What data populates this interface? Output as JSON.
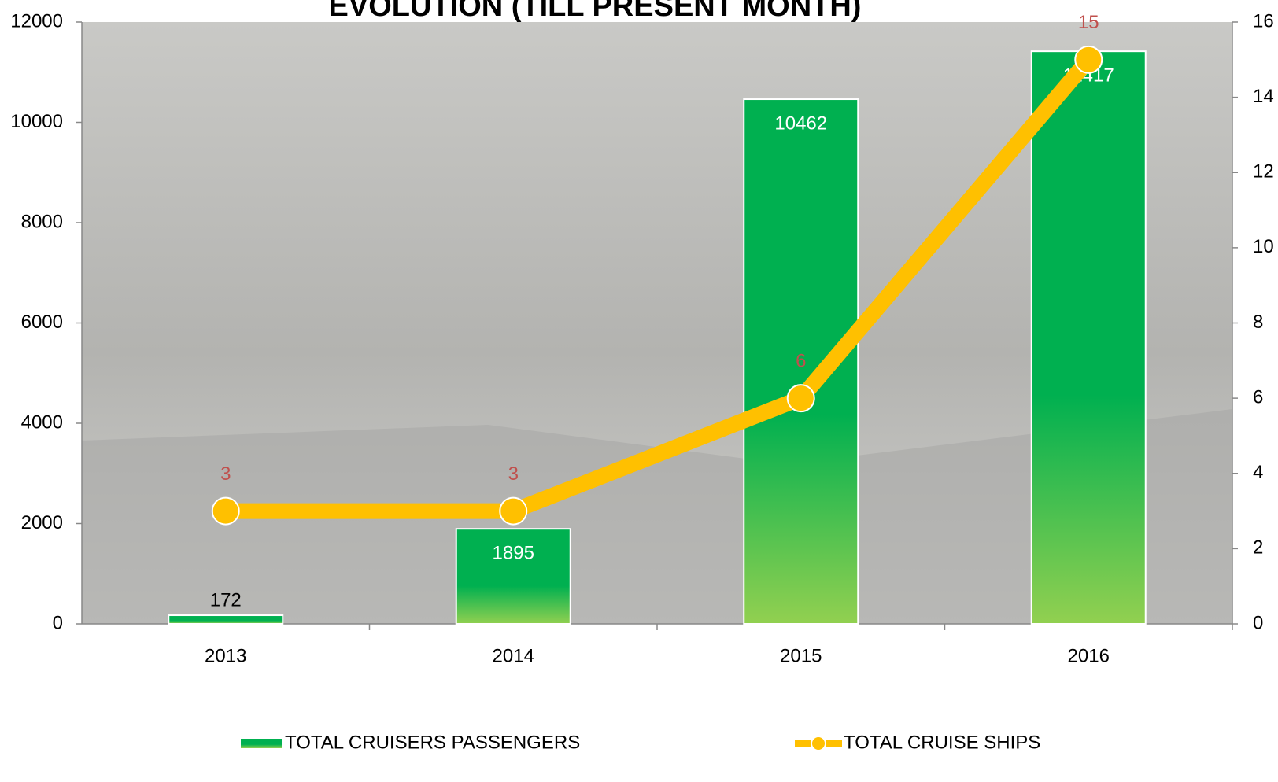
{
  "chart_data": {
    "type": "combo",
    "title": "EVOLUTION (TILL PRESENT MONTH)",
    "categories": [
      "2013",
      "2014",
      "2015",
      "2016"
    ],
    "series": [
      {
        "name": "TOTAL CRUISERS PASSENGERS",
        "type": "bar",
        "axis": "y",
        "color": "#00b050",
        "color2": "#92d050",
        "values": [
          172,
          1895,
          10462,
          11417
        ]
      },
      {
        "name": "TOTAL CRUISE SHIPS",
        "type": "line",
        "axis": "y2",
        "color": "#ffc000",
        "label_color": "#c0504d",
        "values": [
          3,
          3,
          6,
          15
        ]
      }
    ],
    "ylim": [
      0,
      12000
    ],
    "yticks": [
      0,
      2000,
      4000,
      6000,
      8000,
      10000,
      12000
    ],
    "y2lim": [
      0,
      16
    ],
    "y2ticks": [
      0,
      2,
      4,
      6,
      8,
      10,
      12,
      14,
      16
    ],
    "legend": "bottom"
  }
}
